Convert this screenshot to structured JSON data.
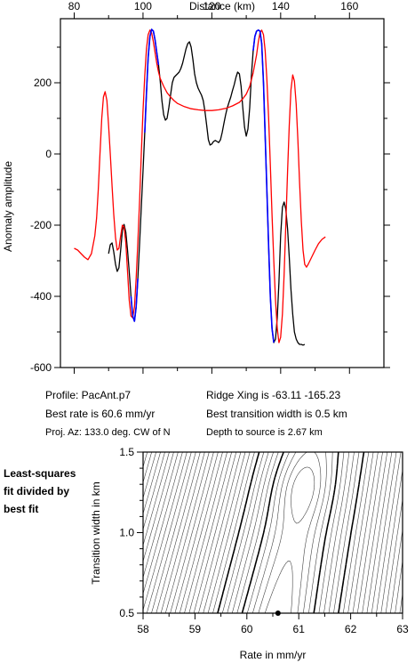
{
  "chart_data": [
    {
      "type": "line",
      "xlabel": "Distance (km)",
      "ylabel": "Anomaly amplitude",
      "xlim": [
        76,
        170
      ],
      "ylim": [
        -600,
        380
      ],
      "xticks": [
        "80",
        "100",
        "120",
        "140",
        "160"
      ],
      "yticks": [
        "200",
        "0",
        "-200",
        "-400",
        "-600"
      ],
      "xtick_values": [
        80,
        100,
        120,
        140,
        160
      ],
      "ytick_values": [
        200,
        0,
        -200,
        -400,
        -600
      ],
      "grid": false,
      "series": [
        {
          "color": "#000000",
          "points": [
            [
              90,
              -280
            ],
            [
              90.5,
              -255
            ],
            [
              91,
              -250
            ],
            [
              91.5,
              -275
            ],
            [
              92,
              -310
            ],
            [
              92.5,
              -330
            ],
            [
              93,
              -320
            ],
            [
              93.5,
              -270
            ],
            [
              94,
              -215
            ],
            [
              94.5,
              -198
            ],
            [
              95,
              -220
            ],
            [
              95.5,
              -270
            ],
            [
              96,
              -330
            ],
            [
              96.5,
              -400
            ],
            [
              97,
              -455
            ],
            [
              97.5,
              -470
            ],
            [
              98,
              -430
            ],
            [
              98.5,
              -350
            ],
            [
              99,
              -250
            ],
            [
              99.5,
              -150
            ],
            [
              100,
              -50
            ],
            [
              100.5,
              60
            ],
            [
              101,
              170
            ],
            [
              101.5,
              270
            ],
            [
              102,
              330
            ],
            [
              102.5,
              350
            ],
            [
              103,
              345
            ],
            [
              103.5,
              320
            ],
            [
              104,
              285
            ],
            [
              104.5,
              250
            ],
            [
              105,
              205
            ],
            [
              105.5,
              150
            ],
            [
              106,
              110
            ],
            [
              106.5,
              95
            ],
            [
              107,
              100
            ],
            [
              107.5,
              130
            ],
            [
              108,
              165
            ],
            [
              108.5,
              200
            ],
            [
              109,
              215
            ],
            [
              109.5,
              220
            ],
            [
              110,
              225
            ],
            [
              110.5,
              230
            ],
            [
              111,
              240
            ],
            [
              111.5,
              255
            ],
            [
              112,
              275
            ],
            [
              112.5,
              295
            ],
            [
              113,
              310
            ],
            [
              113.5,
              315
            ],
            [
              114,
              300
            ],
            [
              114.5,
              265
            ],
            [
              115,
              225
            ],
            [
              115.5,
              200
            ],
            [
              116,
              185
            ],
            [
              116.5,
              175
            ],
            [
              117,
              165
            ],
            [
              117.5,
              150
            ],
            [
              118,
              120
            ],
            [
              118.5,
              80
            ],
            [
              119,
              40
            ],
            [
              119.5,
              25
            ],
            [
              120,
              28
            ],
            [
              120.5,
              35
            ],
            [
              121,
              38
            ],
            [
              121.5,
              35
            ],
            [
              122,
              32
            ],
            [
              122.5,
              40
            ],
            [
              123,
              60
            ],
            [
              123.5,
              85
            ],
            [
              124,
              110
            ],
            [
              124.5,
              130
            ],
            [
              125,
              145
            ],
            [
              125.5,
              160
            ],
            [
              126,
              178
            ],
            [
              126.5,
              195
            ],
            [
              127,
              215
            ],
            [
              127.5,
              230
            ],
            [
              128,
              225
            ],
            [
              128.5,
              190
            ],
            [
              129,
              130
            ],
            [
              129.5,
              75
            ],
            [
              130,
              50
            ],
            [
              130.5,
              70
            ],
            [
              131,
              130
            ],
            [
              131.5,
              220
            ],
            [
              132,
              290
            ],
            [
              132.5,
              330
            ],
            [
              133,
              345
            ],
            [
              133.5,
              348
            ],
            [
              134,
              345
            ],
            [
              134.5,
              310
            ],
            [
              135,
              200
            ],
            [
              135.5,
              50
            ],
            [
              136,
              -100
            ],
            [
              136.5,
              -260
            ],
            [
              137,
              -400
            ],
            [
              137.5,
              -490
            ],
            [
              138,
              -530
            ],
            [
              138.5,
              -520
            ],
            [
              139,
              -460
            ],
            [
              139.5,
              -360
            ],
            [
              140,
              -230
            ],
            [
              140.5,
              -150
            ],
            [
              141,
              -135
            ],
            [
              141.5,
              -155
            ],
            [
              142,
              -210
            ],
            [
              142.5,
              -290
            ],
            [
              143,
              -380
            ],
            [
              143.5,
              -450
            ],
            [
              144,
              -500
            ],
            [
              144.5,
              -520
            ],
            [
              145,
              -530
            ],
            [
              145.5,
              -535
            ],
            [
              146,
              -535
            ],
            [
              146.5,
              -537
            ],
            [
              147,
              -535
            ]
          ]
        },
        {
          "color": "#ff0000",
          "points": [
            [
              80,
              -265
            ],
            [
              81,
              -270
            ],
            [
              82,
              -280
            ],
            [
              83,
              -290
            ],
            [
              84,
              -297
            ],
            [
              85,
              -280
            ],
            [
              86,
              -230
            ],
            [
              86.5,
              -180
            ],
            [
              87,
              -100
            ],
            [
              87.5,
              0
            ],
            [
              88,
              100
            ],
            [
              88.5,
              160
            ],
            [
              89,
              175
            ],
            [
              89.5,
              150
            ],
            [
              90,
              80
            ],
            [
              90.5,
              0
            ],
            [
              91,
              -90
            ],
            [
              91.5,
              -170
            ],
            [
              92,
              -235
            ],
            [
              92.5,
              -270
            ],
            [
              93,
              -265
            ],
            [
              93.5,
              -230
            ],
            [
              94,
              -200
            ],
            [
              94.5,
              -205
            ],
            [
              95,
              -250
            ],
            [
              95.5,
              -330
            ],
            [
              96,
              -410
            ],
            [
              96.5,
              -455
            ],
            [
              97,
              -460
            ],
            [
              97.5,
              -430
            ],
            [
              98,
              -350
            ],
            [
              98.5,
              -250
            ],
            [
              99,
              -130
            ],
            [
              99.5,
              0
            ],
            [
              100,
              120
            ],
            [
              100.5,
              220
            ],
            [
              101,
              295
            ],
            [
              101.5,
              335
            ],
            [
              102,
              348
            ],
            [
              102.5,
              340
            ],
            [
              103,
              315
            ],
            [
              103.5,
              285
            ],
            [
              104,
              255
            ],
            [
              104.5,
              230
            ],
            [
              105,
              212
            ],
            [
              106,
              190
            ],
            [
              107,
              172
            ],
            [
              108,
              160
            ],
            [
              109,
              150
            ],
            [
              110,
              142
            ],
            [
              112,
              133
            ],
            [
              114,
              127
            ],
            [
              116,
              124
            ],
            [
              118,
              122
            ],
            [
              120,
              122
            ],
            [
              122,
              124
            ],
            [
              124,
              128
            ],
            [
              126,
              135
            ],
            [
              128,
              145
            ],
            [
              129,
              155
            ],
            [
              130,
              168
            ],
            [
              131,
              190
            ],
            [
              132,
              228
            ],
            [
              133,
              278
            ],
            [
              133.5,
              315
            ],
            [
              134,
              340
            ],
            [
              134.5,
              348
            ],
            [
              135,
              335
            ],
            [
              135.5,
              290
            ],
            [
              136,
              210
            ],
            [
              136.5,
              100
            ],
            [
              137,
              -30
            ],
            [
              137.5,
              -170
            ],
            [
              138,
              -300
            ],
            [
              138.5,
              -410
            ],
            [
              139,
              -490
            ],
            [
              139.5,
              -530
            ],
            [
              140,
              -515
            ],
            [
              140.5,
              -450
            ],
            [
              141,
              -340
            ],
            [
              141.5,
              -200
            ],
            [
              142,
              -50
            ],
            [
              142.5,
              80
            ],
            [
              143,
              180
            ],
            [
              143.5,
              222
            ],
            [
              144,
              205
            ],
            [
              144.5,
              140
            ],
            [
              145,
              40
            ],
            [
              145.5,
              -80
            ],
            [
              146,
              -190
            ],
            [
              146.5,
              -270
            ],
            [
              147,
              -310
            ],
            [
              147.5,
              -318
            ],
            [
              148,
              -310
            ],
            [
              149,
              -290
            ],
            [
              150,
              -270
            ],
            [
              151,
              -252
            ],
            [
              152,
              -240
            ],
            [
              153,
              -233
            ]
          ]
        },
        {
          "color": "#0000ff",
          "segments": [
            [
              [
                96.5,
                -400
              ],
              [
                97,
                -455
              ],
              [
                97.5,
                -470
              ],
              [
                98,
                -430
              ],
              [
                98.5,
                -350
              ]
            ],
            [
              [
                100.5,
                60
              ],
              [
                101,
                170
              ],
              [
                101.5,
                270
              ],
              [
                102,
                330
              ],
              [
                102.5,
                350
              ],
              [
                103,
                345
              ],
              [
                103.5,
                320
              ],
              [
                104,
                285
              ],
              [
                104.5,
                250
              ]
            ],
            [
              [
                132,
                290
              ],
              [
                132.5,
                330
              ],
              [
                133,
                345
              ],
              [
                133.5,
                348
              ],
              [
                134,
                345
              ],
              [
                134.5,
                310
              ],
              [
                135,
                200
              ],
              [
                135.5,
                50
              ],
              [
                136,
                -100
              ],
              [
                136.5,
                -260
              ],
              [
                137,
                -400
              ],
              [
                137.5,
                -490
              ],
              [
                138,
                -530
              ]
            ]
          ]
        }
      ]
    },
    {
      "type": "contour",
      "xlabel": "Rate in mm/yr",
      "ylabel": "Transition width in km",
      "xlim": [
        58,
        63
      ],
      "ylim": [
        0.5,
        1.5
      ],
      "xticks": [
        "58",
        "59",
        "60",
        "61",
        "62",
        "63"
      ],
      "yticks": [
        "1.5",
        "1.0",
        "0.5"
      ],
      "xtick_values": [
        58,
        59,
        60,
        61,
        62,
        63
      ],
      "ytick_values": [
        1.5,
        1.0,
        0.5
      ],
      "best_fit": {
        "rate": 60.6,
        "width": 0.5
      }
    }
  ],
  "info": {
    "profile": "Profile: PacAnt.p7",
    "best_rate": "Best rate is 60.6 mm/yr",
    "proj_az": "Proj. Az: 133.0 deg. CW of N",
    "ridge_xing": "Ridge Xing is -63.11  -165.23",
    "best_width": "Best transition width is 0.5 km",
    "depth": "Depth to source is    2.67 km"
  },
  "side_label": [
    "Least-squares",
    "fit divided by",
    "best fit"
  ]
}
